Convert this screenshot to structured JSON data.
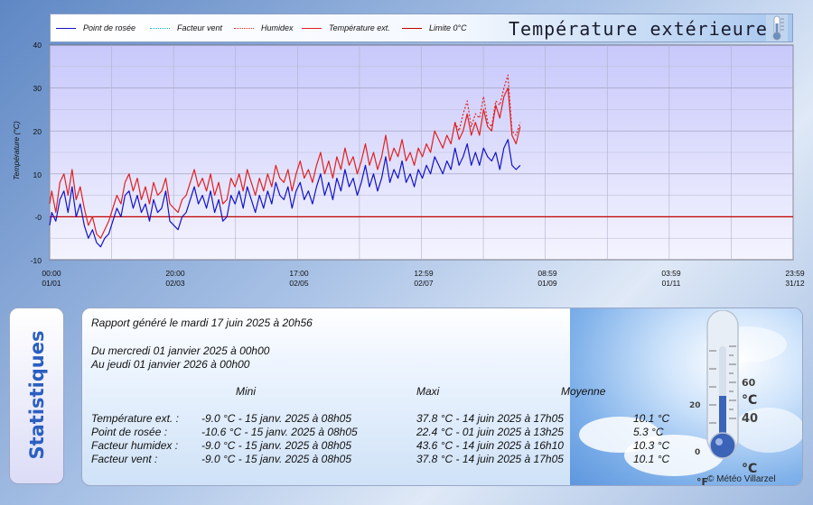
{
  "legend": {
    "items": [
      {
        "label": "Point de rosée",
        "color": "#1212c8",
        "style": "solid"
      },
      {
        "label": "Facteur vent",
        "color": "#12b4c8",
        "style": "dotted"
      },
      {
        "label": "Humidex",
        "color": "#e02020",
        "style": "dotted"
      },
      {
        "label": "Température ext.",
        "color": "#e02020",
        "style": "solid"
      },
      {
        "label": "Limite 0°C",
        "color": "#c00000",
        "style": "solid"
      }
    ],
    "title": "Température extérieure",
    "thermo_icon": "thermometer-icon"
  },
  "chart_data": {
    "type": "line",
    "ylabel": "Température (°C)",
    "ylim": [
      -10,
      40
    ],
    "yticks": [
      "40",
      "30",
      "20",
      "10",
      "-0",
      "-10"
    ],
    "xticks": [
      {
        "time": "00:00",
        "date": "01/01"
      },
      {
        "time": "20:00",
        "date": "02/03"
      },
      {
        "time": "17:00",
        "date": "02/05"
      },
      {
        "time": "12:59",
        "date": "02/07"
      },
      {
        "time": "08:59",
        "date": "01/09"
      },
      {
        "time": "03:59",
        "date": "01/11"
      },
      {
        "time": "23:59",
        "date": "31/12"
      }
    ],
    "x_range_days": [
      0,
      365
    ],
    "limit_line": 0,
    "series": [
      {
        "name": "Température ext.",
        "color": "#e02020",
        "style": "solid",
        "points": [
          [
            0,
            3
          ],
          [
            1,
            6
          ],
          [
            3,
            1
          ],
          [
            5,
            8
          ],
          [
            7,
            10
          ],
          [
            9,
            5
          ],
          [
            11,
            11
          ],
          [
            13,
            4
          ],
          [
            15,
            7
          ],
          [
            17,
            2
          ],
          [
            19,
            -2
          ],
          [
            21,
            0
          ],
          [
            23,
            -4
          ],
          [
            25,
            -5
          ],
          [
            27,
            -3
          ],
          [
            29,
            -1
          ],
          [
            31,
            2
          ],
          [
            33,
            5
          ],
          [
            35,
            3
          ],
          [
            37,
            8
          ],
          [
            39,
            10
          ],
          [
            41,
            6
          ],
          [
            43,
            9
          ],
          [
            45,
            4
          ],
          [
            47,
            7
          ],
          [
            49,
            3
          ],
          [
            51,
            8
          ],
          [
            53,
            5
          ],
          [
            55,
            6
          ],
          [
            57,
            9
          ],
          [
            59,
            3
          ],
          [
            61,
            2
          ],
          [
            63,
            1
          ],
          [
            65,
            4
          ],
          [
            67,
            5
          ],
          [
            69,
            8
          ],
          [
            71,
            11
          ],
          [
            73,
            7
          ],
          [
            75,
            9
          ],
          [
            77,
            6
          ],
          [
            79,
            10
          ],
          [
            81,
            5
          ],
          [
            83,
            8
          ],
          [
            85,
            3
          ],
          [
            87,
            4
          ],
          [
            89,
            9
          ],
          [
            91,
            7
          ],
          [
            93,
            10
          ],
          [
            95,
            6
          ],
          [
            97,
            11
          ],
          [
            99,
            8
          ],
          [
            101,
            5
          ],
          [
            103,
            9
          ],
          [
            105,
            6
          ],
          [
            107,
            10
          ],
          [
            109,
            7
          ],
          [
            111,
            12
          ],
          [
            113,
            9
          ],
          [
            115,
            8
          ],
          [
            117,
            11
          ],
          [
            119,
            6
          ],
          [
            121,
            10
          ],
          [
            123,
            13
          ],
          [
            125,
            9
          ],
          [
            127,
            11
          ],
          [
            129,
            8
          ],
          [
            131,
            12
          ],
          [
            133,
            15
          ],
          [
            135,
            10
          ],
          [
            137,
            13
          ],
          [
            139,
            9
          ],
          [
            141,
            14
          ],
          [
            143,
            11
          ],
          [
            145,
            16
          ],
          [
            147,
            12
          ],
          [
            149,
            14
          ],
          [
            151,
            10
          ],
          [
            153,
            13
          ],
          [
            155,
            17
          ],
          [
            157,
            12
          ],
          [
            159,
            15
          ],
          [
            161,
            11
          ],
          [
            163,
            14
          ],
          [
            165,
            19
          ],
          [
            167,
            13
          ],
          [
            169,
            16
          ],
          [
            171,
            14
          ],
          [
            173,
            18
          ],
          [
            175,
            13
          ],
          [
            177,
            15
          ],
          [
            179,
            12
          ],
          [
            181,
            16
          ],
          [
            183,
            14
          ],
          [
            185,
            17
          ],
          [
            187,
            15
          ],
          [
            189,
            20
          ],
          [
            191,
            18
          ],
          [
            193,
            16
          ],
          [
            195,
            19
          ],
          [
            197,
            17
          ],
          [
            199,
            22
          ],
          [
            201,
            18
          ],
          [
            203,
            20
          ],
          [
            205,
            24
          ],
          [
            207,
            19
          ],
          [
            209,
            22
          ],
          [
            211,
            19
          ],
          [
            213,
            25
          ],
          [
            215,
            21
          ],
          [
            217,
            20
          ],
          [
            219,
            26
          ],
          [
            221,
            23
          ],
          [
            223,
            28
          ],
          [
            225,
            30
          ],
          [
            227,
            19
          ],
          [
            229,
            17
          ],
          [
            231,
            21
          ]
        ]
      },
      {
        "name": "Humidex",
        "color": "#e02020",
        "style": "dotted",
        "points": [
          [
            199,
            22
          ],
          [
            201,
            20
          ],
          [
            203,
            24
          ],
          [
            205,
            27
          ],
          [
            207,
            21
          ],
          [
            209,
            24
          ],
          [
            211,
            23
          ],
          [
            213,
            28
          ],
          [
            215,
            22
          ],
          [
            217,
            21
          ],
          [
            219,
            27
          ],
          [
            221,
            26
          ],
          [
            223,
            30
          ],
          [
            225,
            33
          ],
          [
            227,
            20
          ],
          [
            229,
            19
          ],
          [
            231,
            22
          ]
        ]
      },
      {
        "name": "Point de rosée",
        "color": "#1212c8",
        "style": "solid",
        "points": [
          [
            0,
            -2
          ],
          [
            1,
            1
          ],
          [
            3,
            -1
          ],
          [
            5,
            4
          ],
          [
            7,
            6
          ],
          [
            9,
            1
          ],
          [
            11,
            7
          ],
          [
            13,
            0
          ],
          [
            15,
            3
          ],
          [
            17,
            -2
          ],
          [
            19,
            -5
          ],
          [
            21,
            -3
          ],
          [
            23,
            -6
          ],
          [
            25,
            -7
          ],
          [
            27,
            -5
          ],
          [
            29,
            -4
          ],
          [
            31,
            -1
          ],
          [
            33,
            2
          ],
          [
            35,
            0
          ],
          [
            37,
            5
          ],
          [
            39,
            6
          ],
          [
            41,
            2
          ],
          [
            43,
            5
          ],
          [
            45,
            1
          ],
          [
            47,
            3
          ],
          [
            49,
            -1
          ],
          [
            51,
            4
          ],
          [
            53,
            1
          ],
          [
            55,
            2
          ],
          [
            57,
            6
          ],
          [
            59,
            -1
          ],
          [
            61,
            -2
          ],
          [
            63,
            -3
          ],
          [
            65,
            0
          ],
          [
            67,
            1
          ],
          [
            69,
            4
          ],
          [
            71,
            7
          ],
          [
            73,
            3
          ],
          [
            75,
            5
          ],
          [
            77,
            2
          ],
          [
            79,
            6
          ],
          [
            81,
            1
          ],
          [
            83,
            4
          ],
          [
            85,
            -1
          ],
          [
            87,
            0
          ],
          [
            89,
            5
          ],
          [
            91,
            3
          ],
          [
            93,
            6
          ],
          [
            95,
            2
          ],
          [
            97,
            7
          ],
          [
            99,
            4
          ],
          [
            101,
            1
          ],
          [
            103,
            5
          ],
          [
            105,
            2
          ],
          [
            107,
            6
          ],
          [
            109,
            3
          ],
          [
            111,
            8
          ],
          [
            113,
            5
          ],
          [
            115,
            4
          ],
          [
            117,
            7
          ],
          [
            119,
            2
          ],
          [
            121,
            6
          ],
          [
            123,
            8
          ],
          [
            125,
            4
          ],
          [
            127,
            6
          ],
          [
            129,
            3
          ],
          [
            131,
            7
          ],
          [
            133,
            10
          ],
          [
            135,
            5
          ],
          [
            137,
            8
          ],
          [
            139,
            4
          ],
          [
            141,
            9
          ],
          [
            143,
            6
          ],
          [
            145,
            11
          ],
          [
            147,
            7
          ],
          [
            149,
            9
          ],
          [
            151,
            5
          ],
          [
            153,
            8
          ],
          [
            155,
            12
          ],
          [
            157,
            7
          ],
          [
            159,
            10
          ],
          [
            161,
            6
          ],
          [
            163,
            9
          ],
          [
            165,
            14
          ],
          [
            167,
            8
          ],
          [
            169,
            11
          ],
          [
            171,
            9
          ],
          [
            173,
            13
          ],
          [
            175,
            8
          ],
          [
            177,
            10
          ],
          [
            179,
            7
          ],
          [
            181,
            11
          ],
          [
            183,
            9
          ],
          [
            185,
            12
          ],
          [
            187,
            10
          ],
          [
            189,
            14
          ],
          [
            191,
            12
          ],
          [
            193,
            10
          ],
          [
            195,
            13
          ],
          [
            197,
            11
          ],
          [
            199,
            16
          ],
          [
            201,
            12
          ],
          [
            203,
            14
          ],
          [
            205,
            17
          ],
          [
            207,
            12
          ],
          [
            209,
            15
          ],
          [
            211,
            12
          ],
          [
            213,
            16
          ],
          [
            215,
            14
          ],
          [
            217,
            13
          ],
          [
            219,
            15
          ],
          [
            221,
            11
          ],
          [
            223,
            16
          ],
          [
            225,
            18
          ],
          [
            227,
            12
          ],
          [
            229,
            11
          ],
          [
            231,
            12
          ]
        ]
      }
    ]
  },
  "stats": {
    "tab_label": "Statistiques",
    "report_line": "Rapport généré le mardi 17 juin 2025 à  20h56",
    "from_line": "Du mercredi 01 janvier 2025 à  00h00",
    "to_line": "Au jeudi 01 janvier 2026 à  00h00",
    "col_mini": "Mini",
    "col_maxi": "Maxi",
    "col_moy": "Moyenne",
    "rows": [
      {
        "label": "Température ext. :",
        "mini": "-9.0 °C - 15 janv. 2025 à  08h05",
        "maxi": "37.8 °C - 14 juin 2025 à  17h05",
        "moy": "10.1 °C"
      },
      {
        "label": "Point de rosée :",
        "mini": "-10.6 °C - 15 janv. 2025 à  08h05",
        "maxi": "22.4 °C - 01 juin 2025 à  13h25",
        "moy": "5.3 °C"
      },
      {
        "label": "Facteur humidex :",
        "mini": "-9.0 °C - 15 janv. 2025 à  08h05",
        "maxi": "43.6 °C - 14 juin 2025 à  16h10",
        "moy": "10.3 °C"
      },
      {
        "label": "Facteur vent :",
        "mini": "-9.0 °C - 15 janv. 2025 à  08h05",
        "maxi": "37.8 °C - 14 juin 2025 à  17h05",
        "moy": "10.1 °C"
      }
    ],
    "thermo_scale": [
      "60",
      "40",
      "20",
      "0"
    ],
    "thermo_units": [
      "°F",
      "°C"
    ],
    "copyright": "© Météo Villarzel",
    "illustration_icon": "thermometer-icon"
  }
}
